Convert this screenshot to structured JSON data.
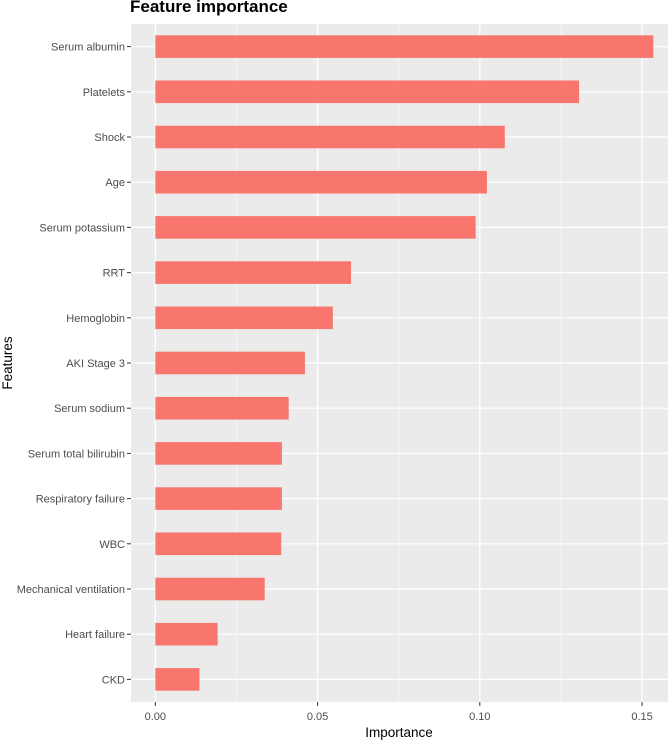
{
  "chart_data": {
    "type": "bar",
    "orientation": "horizontal",
    "title": "Feature importance",
    "xlabel": "Importance",
    "ylabel": "Features",
    "xlim": [
      -0.0075,
      0.158
    ],
    "xticks": [
      0.0,
      0.05,
      0.1,
      0.15
    ],
    "xtick_labels": [
      "0.00",
      "0.05",
      "0.10",
      "0.15"
    ],
    "grid": true,
    "bar_color": "#F8766D",
    "panel_background": "#EBEBEB",
    "categories": [
      "Serum albumin",
      "Platelets",
      "Shock",
      "Age",
      "Serum potassium",
      "RRT",
      "Hemoglobin",
      "AKI Stage 3",
      "Serum sodium",
      "Serum total bilirubin",
      "Respiratory failure",
      "WBC",
      "Mechanical ventilation",
      "Heart failure",
      "CKD"
    ],
    "values": [
      0.1535,
      0.1306,
      0.1077,
      0.1022,
      0.0987,
      0.0603,
      0.0547,
      0.0461,
      0.0411,
      0.039,
      0.039,
      0.0388,
      0.0337,
      0.0192,
      0.0136
    ]
  }
}
